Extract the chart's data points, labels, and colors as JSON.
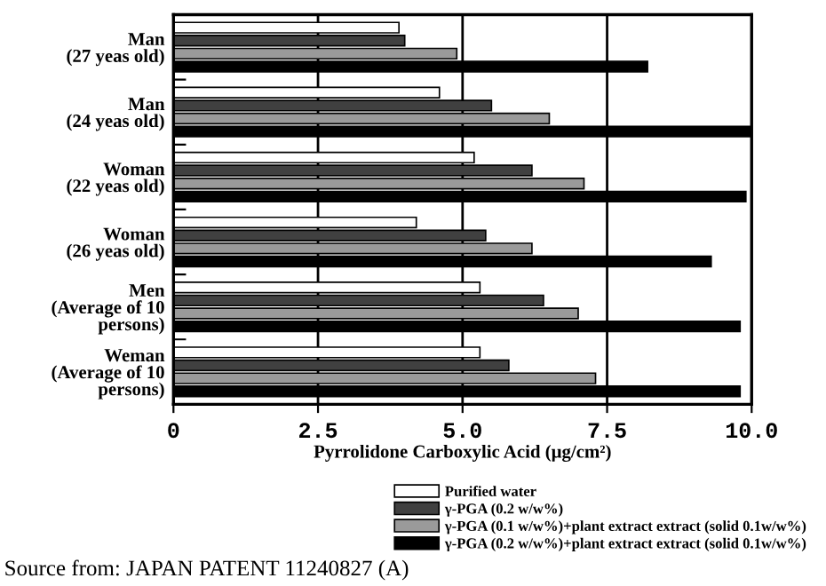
{
  "chart_data": {
    "type": "bar",
    "orientation": "horizontal",
    "categories": [
      "Man\n(27 yeas old)",
      "Man\n(24 yeas old)",
      "Woman\n(22 yeas old)",
      "Woman\n(26 yeas old)",
      "Men\n(Average of 10\npersons)",
      "Weman\n(Average of 10\npersons)"
    ],
    "series": [
      {
        "name": "Purified water",
        "color": "#ffffff",
        "values": [
          3.9,
          4.6,
          5.2,
          4.2,
          5.3,
          5.3
        ]
      },
      {
        "name": "γ-PGA (0.2 w/w%)",
        "color": "#404040",
        "values": [
          4.0,
          5.5,
          6.2,
          5.4,
          6.4,
          5.8
        ]
      },
      {
        "name": "γ-PGA (0.1 w/w%)+plant extract extract (solid 0.1w/w%)",
        "color": "#9a9a9a",
        "values": [
          4.9,
          6.5,
          7.1,
          6.2,
          7.0,
          7.3
        ]
      },
      {
        "name": "γ-PGA (0.2 w/w%)+plant extract extract (solid 0.1w/w%)",
        "color": "#000000",
        "values": [
          8.2,
          10.0,
          9.9,
          9.3,
          9.8,
          9.8
        ]
      }
    ],
    "xlabel": "Pyrrolidone Carboxylic Acid (μg/cm²)",
    "xlim": [
      0,
      10
    ],
    "xticks": [
      0,
      2.5,
      {
        "value": 5,
        "label": "5.0"
      },
      7.5,
      {
        "value": 10,
        "label": "10.0"
      }
    ],
    "grid": "x",
    "legend": "bottom",
    "annotations": [
      "Source from: JAPAN PATENT 11240827 (A)"
    ]
  }
}
